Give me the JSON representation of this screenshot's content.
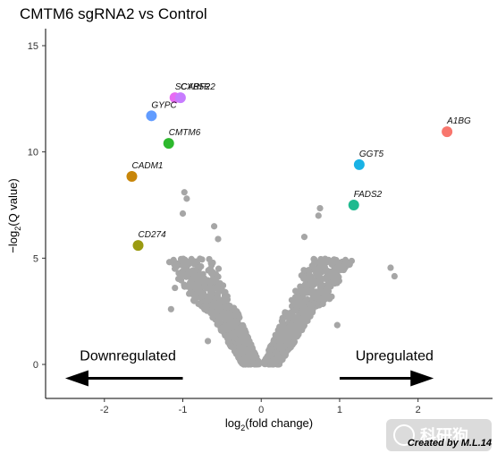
{
  "chart_data": {
    "type": "scatter",
    "title": "CMTM6 sgRNA2 vs Control",
    "xlabel": "log",
    "xlabel_sub": "2",
    "xlabel_rest": "(fold change)",
    "ylabel_prefix": "−log",
    "ylabel_sub": "2",
    "ylabel_rest": "(Q value)",
    "xlim": [
      -2.75,
      2.95
    ],
    "ylim": [
      -1.6,
      15.8
    ],
    "x_ticks": [
      -2,
      -1,
      0,
      1,
      2
    ],
    "y_ticks": [
      0,
      5,
      10,
      15
    ],
    "grid": false,
    "background_color": "#a6a6a6",
    "highlighted_genes": [
      {
        "label": "A1BG",
        "x": 2.37,
        "y": 10.95,
        "color": "#f8766d"
      },
      {
        "label": "GGT5",
        "x": 1.25,
        "y": 9.4,
        "color": "#19b2e5"
      },
      {
        "label": "FADS2",
        "x": 1.18,
        "y": 7.5,
        "color": "#1fba8f"
      },
      {
        "label": "SCARF2",
        "x": -1.1,
        "y": 12.55,
        "color": "#e76bf3"
      },
      {
        "label": "CYB5R2",
        "x": -1.03,
        "y": 12.55,
        "color": "#c77cff"
      },
      {
        "label": "GYPC",
        "x": -1.4,
        "y": 11.7,
        "color": "#619cff"
      },
      {
        "label": "CMTM6",
        "x": -1.18,
        "y": 10.4,
        "color": "#2db82d"
      },
      {
        "label": "CADM1",
        "x": -1.65,
        "y": 8.85,
        "color": "#c8860a"
      },
      {
        "label": "CD274",
        "x": -1.57,
        "y": 5.6,
        "color": "#9a9a11"
      }
    ],
    "background_points_sample": [
      {
        "x": -0.98,
        "y": 8.1
      },
      {
        "x": -0.95,
        "y": 7.8
      },
      {
        "x": -1.0,
        "y": 7.1
      },
      {
        "x": -0.6,
        "y": 6.5
      },
      {
        "x": -0.55,
        "y": 5.9
      },
      {
        "x": 0.55,
        "y": 6.0
      },
      {
        "x": 0.75,
        "y": 7.35
      },
      {
        "x": 0.73,
        "y": 7.0
      },
      {
        "x": 0.9,
        "y": 4.7
      },
      {
        "x": 1.65,
        "y": 4.55
      },
      {
        "x": 1.7,
        "y": 4.15
      },
      {
        "x": -1.1,
        "y": 3.6
      },
      {
        "x": -1.15,
        "y": 2.6
      },
      {
        "x": 0.97,
        "y": 1.85
      },
      {
        "x": -0.68,
        "y": 1.1
      }
    ],
    "annotations": {
      "left_arrow_label": "Downregulated",
      "right_arrow_label": "Upregulated",
      "arrow_y": -0.65,
      "left_arrow_x": [
        -2.5,
        -1.0
      ],
      "right_arrow_x": [
        1.0,
        2.2
      ],
      "left_label_x": -1.7,
      "right_label_x": 1.7,
      "label_y": 0.2
    }
  },
  "credit": "Created by M.L.14",
  "watermark": "科研狗"
}
